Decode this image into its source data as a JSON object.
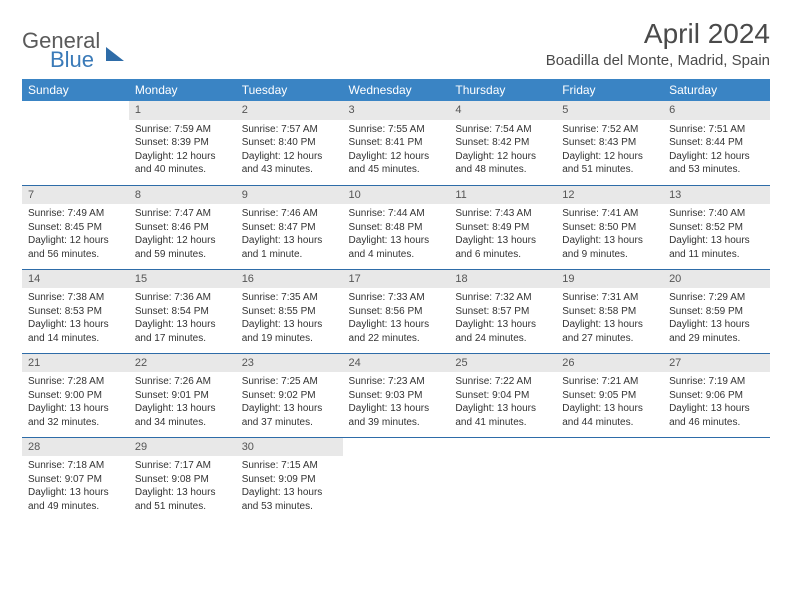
{
  "brand": {
    "general": "General",
    "blue": "Blue"
  },
  "title": "April 2024",
  "location": "Boadilla del Monte, Madrid, Spain",
  "day_headers": [
    "Sunday",
    "Monday",
    "Tuesday",
    "Wednesday",
    "Thursday",
    "Friday",
    "Saturday"
  ],
  "colors": {
    "header_bg": "#3a84c4",
    "header_fg": "#ffffff",
    "daynum_bg": "#e8e8e8",
    "rule": "#2e6ca8",
    "text": "#333333"
  },
  "weeks": [
    [
      null,
      {
        "n": "1",
        "sr": "Sunrise: 7:59 AM",
        "ss": "Sunset: 8:39 PM",
        "d1": "Daylight: 12 hours",
        "d2": "and 40 minutes."
      },
      {
        "n": "2",
        "sr": "Sunrise: 7:57 AM",
        "ss": "Sunset: 8:40 PM",
        "d1": "Daylight: 12 hours",
        "d2": "and 43 minutes."
      },
      {
        "n": "3",
        "sr": "Sunrise: 7:55 AM",
        "ss": "Sunset: 8:41 PM",
        "d1": "Daylight: 12 hours",
        "d2": "and 45 minutes."
      },
      {
        "n": "4",
        "sr": "Sunrise: 7:54 AM",
        "ss": "Sunset: 8:42 PM",
        "d1": "Daylight: 12 hours",
        "d2": "and 48 minutes."
      },
      {
        "n": "5",
        "sr": "Sunrise: 7:52 AM",
        "ss": "Sunset: 8:43 PM",
        "d1": "Daylight: 12 hours",
        "d2": "and 51 minutes."
      },
      {
        "n": "6",
        "sr": "Sunrise: 7:51 AM",
        "ss": "Sunset: 8:44 PM",
        "d1": "Daylight: 12 hours",
        "d2": "and 53 minutes."
      }
    ],
    [
      {
        "n": "7",
        "sr": "Sunrise: 7:49 AM",
        "ss": "Sunset: 8:45 PM",
        "d1": "Daylight: 12 hours",
        "d2": "and 56 minutes."
      },
      {
        "n": "8",
        "sr": "Sunrise: 7:47 AM",
        "ss": "Sunset: 8:46 PM",
        "d1": "Daylight: 12 hours",
        "d2": "and 59 minutes."
      },
      {
        "n": "9",
        "sr": "Sunrise: 7:46 AM",
        "ss": "Sunset: 8:47 PM",
        "d1": "Daylight: 13 hours",
        "d2": "and 1 minute."
      },
      {
        "n": "10",
        "sr": "Sunrise: 7:44 AM",
        "ss": "Sunset: 8:48 PM",
        "d1": "Daylight: 13 hours",
        "d2": "and 4 minutes."
      },
      {
        "n": "11",
        "sr": "Sunrise: 7:43 AM",
        "ss": "Sunset: 8:49 PM",
        "d1": "Daylight: 13 hours",
        "d2": "and 6 minutes."
      },
      {
        "n": "12",
        "sr": "Sunrise: 7:41 AM",
        "ss": "Sunset: 8:50 PM",
        "d1": "Daylight: 13 hours",
        "d2": "and 9 minutes."
      },
      {
        "n": "13",
        "sr": "Sunrise: 7:40 AM",
        "ss": "Sunset: 8:52 PM",
        "d1": "Daylight: 13 hours",
        "d2": "and 11 minutes."
      }
    ],
    [
      {
        "n": "14",
        "sr": "Sunrise: 7:38 AM",
        "ss": "Sunset: 8:53 PM",
        "d1": "Daylight: 13 hours",
        "d2": "and 14 minutes."
      },
      {
        "n": "15",
        "sr": "Sunrise: 7:36 AM",
        "ss": "Sunset: 8:54 PM",
        "d1": "Daylight: 13 hours",
        "d2": "and 17 minutes."
      },
      {
        "n": "16",
        "sr": "Sunrise: 7:35 AM",
        "ss": "Sunset: 8:55 PM",
        "d1": "Daylight: 13 hours",
        "d2": "and 19 minutes."
      },
      {
        "n": "17",
        "sr": "Sunrise: 7:33 AM",
        "ss": "Sunset: 8:56 PM",
        "d1": "Daylight: 13 hours",
        "d2": "and 22 minutes."
      },
      {
        "n": "18",
        "sr": "Sunrise: 7:32 AM",
        "ss": "Sunset: 8:57 PM",
        "d1": "Daylight: 13 hours",
        "d2": "and 24 minutes."
      },
      {
        "n": "19",
        "sr": "Sunrise: 7:31 AM",
        "ss": "Sunset: 8:58 PM",
        "d1": "Daylight: 13 hours",
        "d2": "and 27 minutes."
      },
      {
        "n": "20",
        "sr": "Sunrise: 7:29 AM",
        "ss": "Sunset: 8:59 PM",
        "d1": "Daylight: 13 hours",
        "d2": "and 29 minutes."
      }
    ],
    [
      {
        "n": "21",
        "sr": "Sunrise: 7:28 AM",
        "ss": "Sunset: 9:00 PM",
        "d1": "Daylight: 13 hours",
        "d2": "and 32 minutes."
      },
      {
        "n": "22",
        "sr": "Sunrise: 7:26 AM",
        "ss": "Sunset: 9:01 PM",
        "d1": "Daylight: 13 hours",
        "d2": "and 34 minutes."
      },
      {
        "n": "23",
        "sr": "Sunrise: 7:25 AM",
        "ss": "Sunset: 9:02 PM",
        "d1": "Daylight: 13 hours",
        "d2": "and 37 minutes."
      },
      {
        "n": "24",
        "sr": "Sunrise: 7:23 AM",
        "ss": "Sunset: 9:03 PM",
        "d1": "Daylight: 13 hours",
        "d2": "and 39 minutes."
      },
      {
        "n": "25",
        "sr": "Sunrise: 7:22 AM",
        "ss": "Sunset: 9:04 PM",
        "d1": "Daylight: 13 hours",
        "d2": "and 41 minutes."
      },
      {
        "n": "26",
        "sr": "Sunrise: 7:21 AM",
        "ss": "Sunset: 9:05 PM",
        "d1": "Daylight: 13 hours",
        "d2": "and 44 minutes."
      },
      {
        "n": "27",
        "sr": "Sunrise: 7:19 AM",
        "ss": "Sunset: 9:06 PM",
        "d1": "Daylight: 13 hours",
        "d2": "and 46 minutes."
      }
    ],
    [
      {
        "n": "28",
        "sr": "Sunrise: 7:18 AM",
        "ss": "Sunset: 9:07 PM",
        "d1": "Daylight: 13 hours",
        "d2": "and 49 minutes."
      },
      {
        "n": "29",
        "sr": "Sunrise: 7:17 AM",
        "ss": "Sunset: 9:08 PM",
        "d1": "Daylight: 13 hours",
        "d2": "and 51 minutes."
      },
      {
        "n": "30",
        "sr": "Sunrise: 7:15 AM",
        "ss": "Sunset: 9:09 PM",
        "d1": "Daylight: 13 hours",
        "d2": "and 53 minutes."
      },
      null,
      null,
      null,
      null
    ]
  ]
}
